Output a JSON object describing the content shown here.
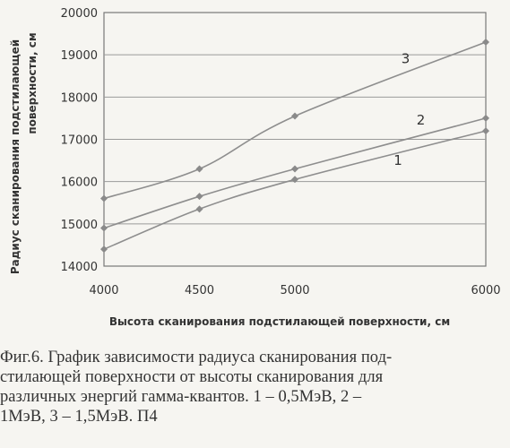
{
  "chart_data": {
    "type": "line",
    "xlabel": "Высота сканирования  подстилающей поверхности, см",
    "ylabel_lines": [
      "Радиус сканирования  подстилающей",
      "поверхности, см"
    ],
    "xlim": [
      4000,
      6000
    ],
    "ylim": [
      14000,
      20000
    ],
    "x_ticks": [
      "4000",
      "4500",
      "5000",
      "6000"
    ],
    "x_tick_values": [
      4000,
      4500,
      5000,
      6000
    ],
    "y_ticks": [
      "14000",
      "15000",
      "16000",
      "17000",
      "18000",
      "19000",
      "20000"
    ],
    "y_tick_values": [
      14000,
      15000,
      16000,
      17000,
      18000,
      19000,
      20000
    ],
    "grid": "horizontal",
    "series": [
      {
        "name": "1",
        "x": [
          4000,
          4500,
          5000,
          6000
        ],
        "values": [
          14400,
          15350,
          16050,
          17200
        ],
        "label_at": [
          5540,
          16400
        ]
      },
      {
        "name": "2",
        "x": [
          4000,
          4500,
          5000,
          6000
        ],
        "values": [
          14900,
          15650,
          16300,
          17500
        ],
        "label_at": [
          5660,
          17350
        ]
      },
      {
        "name": "3",
        "x": [
          4000,
          4500,
          5000,
          6000
        ],
        "values": [
          15600,
          16300,
          17550,
          19300
        ],
        "label_at": [
          5580,
          18800
        ]
      }
    ]
  },
  "caption": {
    "lines": [
      "Фиг.6. График зависимости радиуса сканирования под-",
      "стилающей поверхности от высоты сканирования для",
      "различных энергий гамма-квантов. 1 – 0,5МэВ, 2 –",
      "1МэВ, 3 – 1,5МэВ. П4"
    ]
  }
}
